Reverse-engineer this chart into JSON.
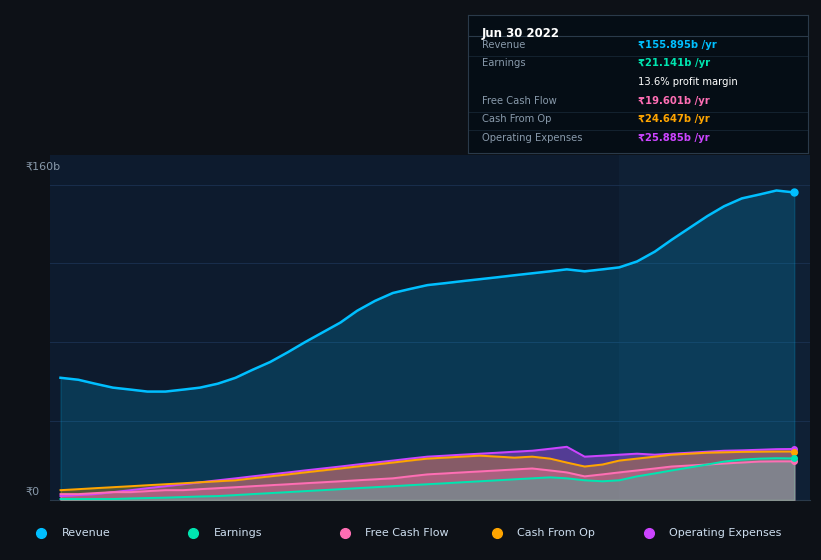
{
  "bg_color": "#0d1117",
  "plot_bg_color": "#0d1b2e",
  "highlight_bg": "#0f2035",
  "grid_color": "#1a3050",
  "years": [
    2015.5,
    2015.67,
    2015.83,
    2016.0,
    2016.17,
    2016.33,
    2016.5,
    2016.67,
    2016.83,
    2017.0,
    2017.17,
    2017.33,
    2017.5,
    2017.67,
    2017.83,
    2018.0,
    2018.17,
    2018.33,
    2018.5,
    2018.67,
    2018.83,
    2019.0,
    2019.17,
    2019.33,
    2019.5,
    2019.67,
    2019.83,
    2020.0,
    2020.17,
    2020.33,
    2020.5,
    2020.67,
    2020.83,
    2021.0,
    2021.17,
    2021.33,
    2021.5,
    2021.67,
    2021.83,
    2022.0,
    2022.17,
    2022.33,
    2022.5
  ],
  "revenue": [
    62,
    61,
    59,
    57,
    56,
    55,
    55,
    56,
    57,
    59,
    62,
    66,
    70,
    75,
    80,
    85,
    90,
    96,
    101,
    105,
    107,
    109,
    110,
    111,
    112,
    113,
    114,
    115,
    116,
    117,
    116,
    117,
    118,
    121,
    126,
    132,
    138,
    144,
    149,
    153,
    155,
    157,
    156
  ],
  "earnings": [
    0.5,
    0.5,
    0.5,
    0.5,
    0.8,
    1.0,
    1.2,
    1.5,
    1.8,
    2.0,
    2.5,
    3.0,
    3.5,
    4.0,
    4.5,
    5.0,
    5.5,
    6.0,
    6.5,
    7.0,
    7.5,
    8.0,
    8.5,
    9.0,
    9.5,
    10.0,
    10.5,
    11.0,
    11.5,
    11.0,
    10.0,
    9.5,
    10.0,
    12.0,
    13.5,
    15.0,
    16.5,
    18.0,
    19.5,
    20.5,
    21.0,
    21.2,
    21.1
  ],
  "fcf": [
    3,
    3,
    3.5,
    4,
    4,
    4.5,
    5,
    5,
    5.5,
    6,
    6.5,
    7,
    7.5,
    8,
    8.5,
    9,
    9.5,
    10,
    10.5,
    11,
    12,
    13,
    13.5,
    14,
    14.5,
    15,
    15.5,
    16,
    15,
    14,
    12,
    13,
    14,
    15,
    16,
    17,
    17.5,
    18,
    18.5,
    19,
    19.5,
    19.6,
    19.6
  ],
  "cashfromop": [
    5,
    5.5,
    6,
    6.5,
    7,
    7.5,
    8,
    8.5,
    9,
    9.5,
    10,
    11,
    12,
    13,
    14,
    15,
    16,
    17,
    18,
    19,
    20,
    21,
    21.5,
    22,
    22.5,
    22,
    21.5,
    22,
    21,
    19,
    17,
    18,
    20,
    21,
    22,
    23,
    23.5,
    24,
    24.2,
    24.4,
    24.5,
    24.6,
    24.6
  ],
  "opex": [
    2,
    2.5,
    3,
    4,
    5,
    6,
    7,
    8,
    9,
    10,
    11,
    12,
    13,
    14,
    15,
    16,
    17,
    18,
    19,
    20,
    21,
    22,
    22.5,
    23,
    23.5,
    24,
    24.5,
    25,
    26,
    27,
    22,
    22.5,
    23,
    23.5,
    23,
    23.5,
    24,
    24.5,
    25,
    25.2,
    25.5,
    25.8,
    25.9
  ],
  "xlim": [
    2015.4,
    2022.65
  ],
  "ylim": [
    0,
    175
  ],
  "highlight_start": 2020.83,
  "highlight_end": 2022.65,
  "xticks": [
    2016,
    2017,
    2018,
    2019,
    2020,
    2021,
    2022
  ],
  "revenue_color": "#00bfff",
  "earnings_color": "#00e5b0",
  "fcf_color": "#ff6eb4",
  "cashfromop_color": "#ffa500",
  "opex_color": "#cc44ff",
  "tooltip_bg": "#050d15",
  "tooltip_border": "#2a3a4a",
  "tooltip_title": "Jun 30 2022",
  "tooltip_revenue_label": "Revenue",
  "tooltip_revenue_value": "₹155.895b /yr",
  "tooltip_earnings_label": "Earnings",
  "tooltip_earnings_value": "₹21.141b /yr",
  "tooltip_margin": "13.6% profit margin",
  "tooltip_fcf_label": "Free Cash Flow",
  "tooltip_fcf_value": "₹19.601b /yr",
  "tooltip_cashop_label": "Cash From Op",
  "tooltip_cashop_value": "₹24.647b /yr",
  "tooltip_opex_label": "Operating Expenses",
  "tooltip_opex_value": "₹25.885b /yr",
  "legend_labels": [
    "Revenue",
    "Earnings",
    "Free Cash Flow",
    "Cash From Op",
    "Operating Expenses"
  ],
  "legend_colors": [
    "#00bfff",
    "#00e5b0",
    "#ff6eb4",
    "#ffa500",
    "#cc44ff"
  ]
}
